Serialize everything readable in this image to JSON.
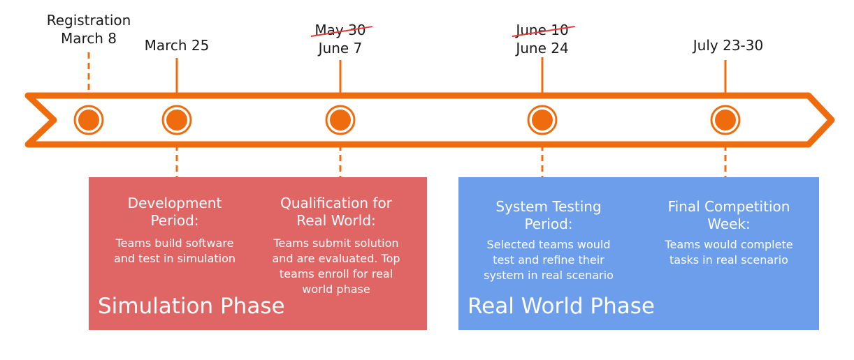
{
  "colors": {
    "orange": "#EE6C0E",
    "simulation_box": "#E06666",
    "real_world_box": "#6D9EEB",
    "strike": "#E53935"
  },
  "milestones": [
    {
      "label": "Registration\nMarch 8",
      "struck": ""
    },
    {
      "label": "March 25",
      "struck": ""
    },
    {
      "label": "June 7",
      "struck": "May 30"
    },
    {
      "label": "June 24",
      "struck": "June 10"
    },
    {
      "label": "July 23-30",
      "struck": ""
    }
  ],
  "phases": {
    "simulation": {
      "title": "Simulation Phase",
      "steps": [
        {
          "title": "Development\nPeriod:",
          "desc": "Teams build software\nand test in simulation"
        },
        {
          "title": "Qualification for\nReal World:",
          "desc": "Teams submit solution\nand are evaluated. Top\nteams enroll for real\nworld phase"
        }
      ]
    },
    "real_world": {
      "title": "Real World Phase",
      "steps": [
        {
          "title": "System Testing\nPeriod:",
          "desc": "Selected teams would\ntest and refine their\nsystem in real scenario"
        },
        {
          "title": "Final Competition\nWeek:",
          "desc": "Teams would complete\ntasks in real scenario"
        }
      ]
    }
  }
}
